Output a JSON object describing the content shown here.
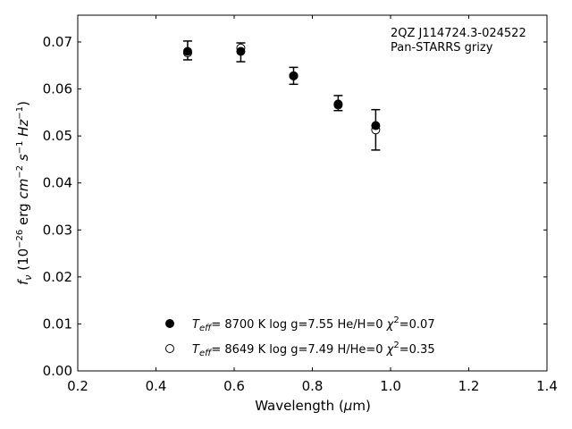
{
  "chart_data": {
    "type": "scatter",
    "xlabel": "Wavelength (μm)",
    "ylabel": "fν (10⁻²⁶ erg cm⁻² s⁻¹ Hz⁻¹)",
    "xlim": [
      0.2,
      1.4
    ],
    "ylim": [
      0.0,
      0.0757
    ],
    "xticks": [
      "0.2",
      "0.4",
      "0.6",
      "0.8",
      "1.0",
      "1.2",
      "1.4"
    ],
    "yticks": [
      "0.00",
      "0.01",
      "0.02",
      "0.03",
      "0.04",
      "0.05",
      "0.06",
      "0.07"
    ],
    "grid": false,
    "annotation": [
      "2QZ J114724.3-024522",
      "Pan-STARRS grizy"
    ],
    "observed": {
      "x": [
        0.481,
        0.617,
        0.752,
        0.866,
        0.962
      ],
      "y": [
        0.0682,
        0.0678,
        0.0628,
        0.057,
        0.0513
      ],
      "yerr": [
        0.002,
        0.002,
        0.0018,
        0.0016,
        0.0043
      ]
    },
    "series": [
      {
        "marker": "filled-circle",
        "label": {
          "teff": "8700 K",
          "logg": "log g=7.55",
          "comp": "He/H=0",
          "chi2": "=0.07"
        },
        "x": [
          0.481,
          0.617,
          0.752,
          0.866,
          0.962
        ],
        "y": [
          0.068,
          0.068,
          0.0628,
          0.0568,
          0.0522
        ]
      },
      {
        "marker": "open-circle",
        "label": {
          "teff": "8649 K",
          "logg": "log g=7.49",
          "comp": "H/He=0",
          "chi2": "=0.35"
        },
        "x": [
          0.481,
          0.617,
          0.752,
          0.866,
          0.962
        ],
        "y": [
          0.0677,
          0.0687,
          0.0628,
          0.0566,
          0.0513
        ]
      }
    ],
    "legend_placement": "lower-center"
  }
}
